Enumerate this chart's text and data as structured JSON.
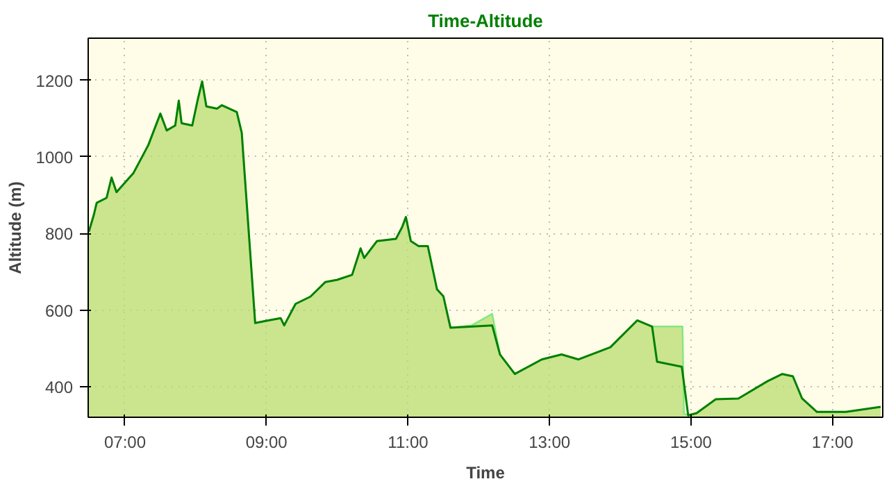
{
  "chart_data": {
    "type": "area",
    "title": "Time-Altitude",
    "xlabel": "Time",
    "ylabel": "Altitude (m)",
    "xlim": [
      6.48,
      17.71
    ],
    "ylim": [
      320,
      1310
    ],
    "xticks": [
      {
        "value": 7,
        "label": "07:00"
      },
      {
        "value": 9,
        "label": "09:00"
      },
      {
        "value": 11,
        "label": "11:00"
      },
      {
        "value": 13,
        "label": "13:00"
      },
      {
        "value": 15,
        "label": "15:00"
      },
      {
        "value": 17,
        "label": "17:00"
      }
    ],
    "yticks": [
      400,
      600,
      800,
      1000,
      1200
    ],
    "grid": true,
    "line_style": "solid",
    "series": [
      {
        "color": "#80e880",
        "x": [
          6.49,
          6.56,
          6.6,
          6.74,
          6.81,
          6.88,
          7.12,
          7.33,
          7.5,
          7.59,
          7.71,
          7.76,
          7.8,
          7.95,
          8.03,
          8.09,
          8.15,
          8.3,
          8.37,
          8.58,
          8.65,
          8.72,
          8.84,
          9.0,
          9.2,
          9.25,
          9.41,
          9.62,
          9.83,
          10.0,
          10.21,
          10.33,
          10.38,
          10.56,
          10.83,
          10.92,
          10.97,
          11.04,
          11.15,
          11.28,
          11.41,
          11.5,
          11.6,
          11.9,
          12.19,
          12.3,
          12.51,
          12.89,
          13.17,
          13.41,
          13.86,
          14.24,
          14.45,
          14.88,
          14.9,
          14.96,
          15.08,
          15.35,
          15.67,
          16.08,
          16.29,
          16.44,
          16.57,
          16.78,
          17.19,
          17.68
        ],
        "values": [
          805,
          849,
          880,
          893,
          946,
          908,
          958,
          1031,
          1113,
          1069,
          1082,
          1147,
          1088,
          1082,
          1151,
          1197,
          1132,
          1126,
          1135,
          1117,
          1063,
          880,
          566,
          572,
          579,
          560,
          616,
          635,
          673,
          679,
          692,
          761,
          736,
          780,
          786,
          818,
          843,
          780,
          767,
          767,
          654,
          636,
          554,
          560,
          590,
          484,
          433,
          471,
          484,
          471,
          503,
          573,
          557,
          557,
          330,
          325,
          331,
          367,
          369,
          414,
          433,
          427,
          369,
          334,
          334,
          347
        ]
      },
      {
        "type": "line",
        "color": "#008000",
        "x": [
          6.49,
          6.56,
          6.6,
          6.74,
          6.81,
          6.88,
          7.12,
          7.33,
          7.5,
          7.59,
          7.71,
          7.76,
          7.8,
          7.95,
          8.03,
          8.09,
          8.15,
          8.3,
          8.37,
          8.58,
          8.65,
          8.72,
          8.84,
          9.0,
          9.2,
          9.25,
          9.41,
          9.62,
          9.83,
          10.0,
          10.21,
          10.33,
          10.38,
          10.56,
          10.83,
          10.92,
          10.97,
          11.04,
          11.15,
          11.28,
          11.41,
          11.5,
          11.6,
          12.19,
          12.3,
          12.51,
          12.89,
          13.17,
          13.41,
          13.86,
          14.24,
          14.45,
          14.52,
          14.87,
          14.96,
          15.08,
          15.35,
          15.67,
          16.08,
          16.29,
          16.44,
          16.57,
          16.78,
          17.19,
          17.68
        ],
        "values": [
          805,
          849,
          880,
          893,
          946,
          908,
          958,
          1031,
          1113,
          1069,
          1082,
          1147,
          1088,
          1082,
          1151,
          1197,
          1132,
          1126,
          1135,
          1117,
          1063,
          880,
          566,
          572,
          579,
          560,
          616,
          635,
          673,
          679,
          692,
          761,
          736,
          780,
          786,
          818,
          843,
          780,
          767,
          767,
          654,
          636,
          554,
          560,
          484,
          433,
          471,
          484,
          471,
          503,
          573,
          557,
          465,
          452,
          325,
          331,
          367,
          369,
          414,
          433,
          427,
          369,
          334,
          334,
          347
        ]
      }
    ]
  }
}
